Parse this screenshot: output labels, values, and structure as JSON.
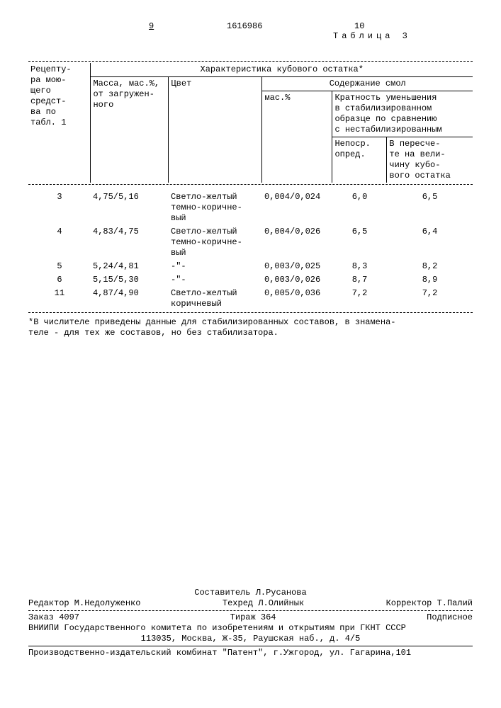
{
  "header": {
    "page_left": "9",
    "doc_number": "1616986",
    "page_right": "10"
  },
  "table": {
    "title": "Таблица 3",
    "col_recipe_hdr": "Рецепту-\nра мою-\nщего\nсредст-\nва по\nтабл. 1",
    "group_hdr": "Характеристика кубового остатка*",
    "col_mass_hdr": "Масса, мас.%,\nот загружен-\nного",
    "col_color_hdr": "Цвет",
    "group_resin_hdr": "Содержание смол",
    "col_maspct_hdr": "мас.%",
    "col_mult_hdr": "Кратность уменьшения\nв стабилизированном\nобразце по сравнению\nс нестабилизированным",
    "col_mult_a": "Непоср.\nопред.",
    "col_mult_b": "В пересче-\nте на вели-\nчину кубо-\nвого остатка",
    "rows": [
      {
        "n": "3",
        "mass": "4,75/5,16",
        "color": "Светло-желтый\nтемно-коричне-\nвый",
        "pct": "0,004/0,024",
        "a": "6,0",
        "b": "6,5"
      },
      {
        "n": "4",
        "mass": "4,83/4,75",
        "color": "Светло-желтый\nтемно-коричне-\nвый",
        "pct": "0,004/0,026",
        "a": "6,5",
        "b": "6,4"
      },
      {
        "n": "5",
        "mass": "5,24/4,81",
        "color": "-\"-",
        "pct": "0,003/0,025",
        "a": "8,3",
        "b": "8,2"
      },
      {
        "n": "6",
        "mass": "5,15/5,30",
        "color": "-\"-",
        "pct": "0,003/0,026",
        "a": "8,7",
        "b": "8,9"
      },
      {
        "n": "11",
        "mass": "4,87/4,90",
        "color": "Светло-желтый\nкоричневый",
        "pct": "0,005/0,036",
        "a": "7,2",
        "b": "7,2"
      }
    ],
    "footnote": "*В числителе приведены данные для стабилизированных составов, в знамена-\nтеле - для тех же составов, но без стабилизатора."
  },
  "footer": {
    "compiler": "Составитель Л.Русанова",
    "editor": "Редактор М.Недолуженко",
    "techred": "Техред Л.Олийнык",
    "corrector": "Корректор Т.Палий",
    "order": "Заказ 4097",
    "tirazh": "Тираж 364",
    "podpis": "Подписное",
    "org1": "ВНИИПИ Государственного комитета по изобретениям и открытиям при ГКНТ СССР",
    "org2": "113035, Москва, Ж-35, Раушская наб., д. 4/5",
    "org3": "Производственно-издательский комбинат \"Патент\", г.Ужгород, ул. Гагарина,101"
  },
  "colors": {
    "text": "#000000",
    "bg": "#ffffff"
  }
}
